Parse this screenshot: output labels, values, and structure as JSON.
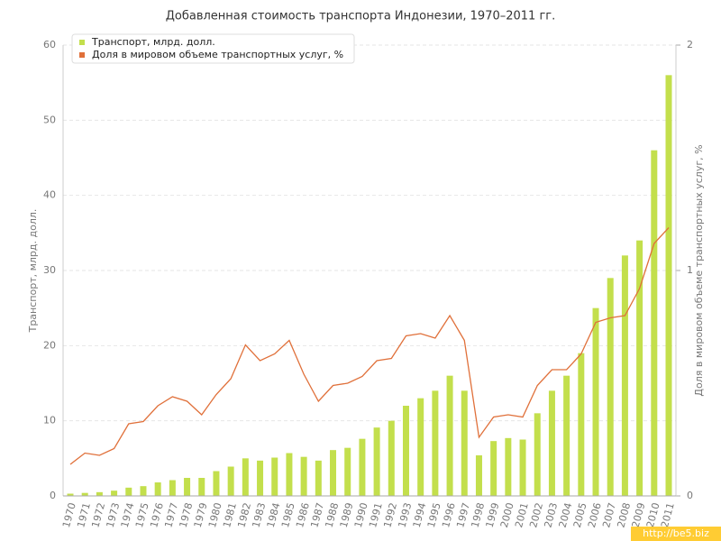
{
  "chart_data": {
    "type": "bar_line",
    "title": "Добавленная стоимость транспорта Индонезии, 1970–2011 гг.",
    "ylabel": "Транспорт, млрд. долл.",
    "y2label": "Доля в мировом объеме транспортных услуг, %",
    "categories": [
      "1970",
      "1971",
      "1972",
      "1973",
      "1974",
      "1975",
      "1976",
      "1977",
      "1978",
      "1979",
      "1980",
      "1981",
      "1982",
      "1983",
      "1984",
      "1985",
      "1986",
      "1987",
      "1988",
      "1989",
      "1990",
      "1991",
      "1992",
      "1993",
      "1994",
      "1995",
      "1996",
      "1997",
      "1998",
      "1999",
      "2000",
      "2001",
      "2002",
      "2003",
      "2004",
      "2005",
      "2006",
      "2007",
      "2008",
      "2009",
      "2010",
      "2011"
    ],
    "series": [
      {
        "name": "Транспорт, млрд. долл.",
        "type": "bar",
        "color": "#c3df4c",
        "values": [
          0.3,
          0.4,
          0.5,
          0.7,
          1.1,
          1.3,
          1.8,
          2.1,
          2.4,
          2.4,
          3.3,
          3.9,
          5.0,
          4.7,
          5.1,
          5.7,
          5.2,
          4.7,
          6.1,
          6.4,
          7.6,
          9.1,
          10.0,
          12.0,
          13.0,
          14.0,
          16.0,
          14.0,
          5.4,
          7.3,
          7.7,
          7.5,
          11.0,
          14.0,
          16.0,
          19.0,
          25.0,
          29.0,
          32.0,
          34.0,
          46.0,
          56.0
        ]
      },
      {
        "name": "Доля в мировом объеме транспортных услуг, %",
        "type": "line",
        "axis": "y2",
        "color": "#e0703a",
        "values": [
          0.14,
          0.19,
          0.18,
          0.21,
          0.32,
          0.33,
          0.4,
          0.44,
          0.42,
          0.36,
          0.45,
          0.52,
          0.67,
          0.6,
          0.63,
          0.69,
          0.54,
          0.42,
          0.49,
          0.5,
          0.53,
          0.6,
          0.61,
          0.71,
          0.72,
          0.7,
          0.8,
          0.69,
          0.26,
          0.35,
          0.36,
          0.35,
          0.49,
          0.56,
          0.56,
          0.63,
          0.77,
          0.79,
          0.8,
          0.92,
          1.12,
          1.19
        ]
      }
    ],
    "ylim": [
      0,
      60
    ],
    "yticks": [
      0,
      10,
      20,
      30,
      40,
      50,
      60
    ],
    "y2lim": [
      0,
      2
    ],
    "y2ticks": [
      0,
      1,
      2
    ],
    "grid": true,
    "legend": "top-left",
    "watermark": "http://be5.biz"
  }
}
